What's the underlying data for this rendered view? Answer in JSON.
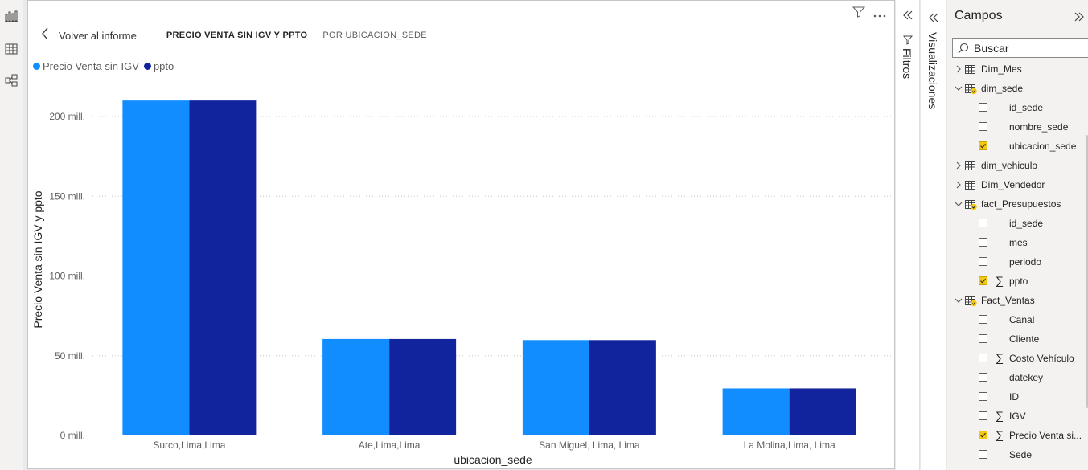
{
  "header": {
    "back_label": "Volver al informe",
    "title": "PRECIO VENTA SIN IGV Y PPTO",
    "subtitle": "POR UBICACION_SEDE"
  },
  "legend": [
    {
      "name": "Precio Venta sin IGV",
      "color": "#118dff"
    },
    {
      "name": "ppto",
      "color": "#12239e"
    }
  ],
  "chart_data": {
    "type": "bar",
    "categories": [
      "Surco,Lima,Lima",
      "Ate,Lima,Lima",
      "San Miguel, Lima, Lima",
      "La Molina,Lima, Lima"
    ],
    "series": [
      {
        "name": "Precio Venta sin IGV",
        "color": "#118dff",
        "values": [
          210,
          60.5,
          59.8,
          29.5
        ]
      },
      {
        "name": "ppto",
        "color": "#12239e",
        "values": [
          210,
          60.5,
          59.8,
          29.5
        ]
      }
    ],
    "xlabel": "ubicacion_sede",
    "ylabel": "Precio Venta sin IGV y ppto",
    "yticks": [
      0,
      50,
      100,
      150,
      200
    ],
    "ytick_labels": [
      "0 mill.",
      "50 mill.",
      "100 mill.",
      "150 mill.",
      "200 mill."
    ],
    "ylim": [
      0,
      220
    ],
    "grid": true,
    "legend_position": "top-left"
  },
  "panes": {
    "filtros_label": "Filtros",
    "visualizaciones_label": "Visualizaciones"
  },
  "campos": {
    "title": "Campos",
    "search_placeholder": "Buscar",
    "items": [
      {
        "kind": "table",
        "label": "Dim_Mes",
        "expanded": false,
        "has_checked": false
      },
      {
        "kind": "table",
        "label": "dim_sede",
        "expanded": true,
        "has_checked": true
      },
      {
        "kind": "field",
        "label": "id_sede",
        "checked": false,
        "sigma": false
      },
      {
        "kind": "field",
        "label": "nombre_sede",
        "checked": false,
        "sigma": false
      },
      {
        "kind": "field",
        "label": "ubicacion_sede",
        "checked": true,
        "sigma": false
      },
      {
        "kind": "table",
        "label": "dim_vehiculo",
        "expanded": false,
        "has_checked": false
      },
      {
        "kind": "table",
        "label": "Dim_Vendedor",
        "expanded": false,
        "has_checked": false
      },
      {
        "kind": "table",
        "label": "fact_Presupuestos",
        "expanded": true,
        "has_checked": true
      },
      {
        "kind": "field",
        "label": "id_sede",
        "checked": false,
        "sigma": false
      },
      {
        "kind": "field",
        "label": "mes",
        "checked": false,
        "sigma": false
      },
      {
        "kind": "field",
        "label": "periodo",
        "checked": false,
        "sigma": false
      },
      {
        "kind": "field",
        "label": "ppto",
        "checked": true,
        "sigma": true
      },
      {
        "kind": "table",
        "label": "Fact_Ventas",
        "expanded": true,
        "has_checked": true
      },
      {
        "kind": "field",
        "label": "Canal",
        "checked": false,
        "sigma": false
      },
      {
        "kind": "field",
        "label": "Cliente",
        "checked": false,
        "sigma": false
      },
      {
        "kind": "field",
        "label": "Costo Vehículo",
        "checked": false,
        "sigma": true
      },
      {
        "kind": "field",
        "label": "datekey",
        "checked": false,
        "sigma": false
      },
      {
        "kind": "field",
        "label": "ID",
        "checked": false,
        "sigma": false
      },
      {
        "kind": "field",
        "label": "IGV",
        "checked": false,
        "sigma": true
      },
      {
        "kind": "field",
        "label": "Precio Venta si...",
        "checked": true,
        "sigma": true
      },
      {
        "kind": "field",
        "label": "Sede",
        "checked": false,
        "sigma": false
      }
    ]
  },
  "colors": {
    "accent_yellow": "#f2c811",
    "series1": "#118dff",
    "series2": "#12239e"
  }
}
